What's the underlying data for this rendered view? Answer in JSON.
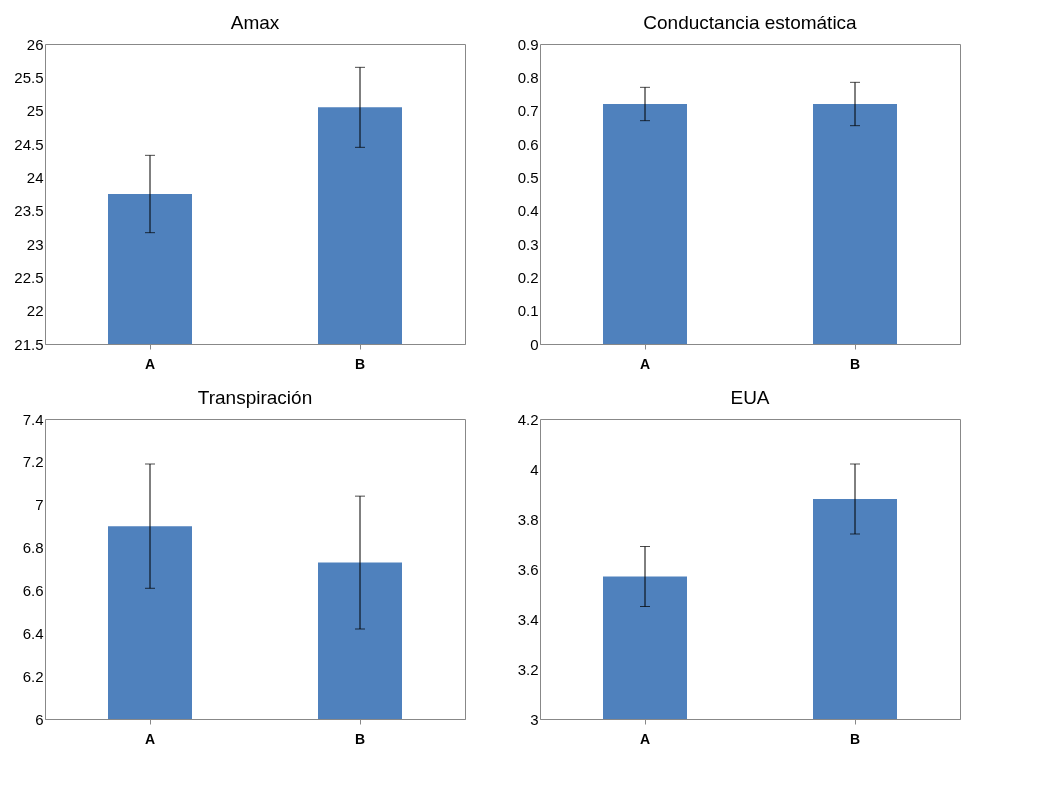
{
  "chart_data": [
    {
      "type": "bar",
      "title": "Amax",
      "categories": [
        "A",
        "B"
      ],
      "values": [
        23.75,
        25.05
      ],
      "errors": [
        0.58,
        0.6
      ],
      "color": "#4f81bd",
      "ylim": [
        21.5,
        26
      ],
      "yticks": [
        21.5,
        22,
        22.5,
        23,
        23.5,
        24,
        24.5,
        25,
        25.5,
        26
      ],
      "grid": false
    },
    {
      "type": "bar",
      "title": "Conductancia estomática",
      "categories": [
        "A",
        "B"
      ],
      "values": [
        0.72,
        0.72
      ],
      "errors": [
        0.05,
        0.065
      ],
      "color": "#4f81bd",
      "ylim": [
        0,
        0.9
      ],
      "yticks": [
        0,
        0.1,
        0.2,
        0.3,
        0.4,
        0.5,
        0.6,
        0.7,
        0.8,
        0.9
      ],
      "grid": false
    },
    {
      "type": "bar",
      "title": "Transpiración",
      "categories": [
        "A",
        "B"
      ],
      "values": [
        6.9,
        6.73
      ],
      "errors": [
        0.29,
        0.31
      ],
      "color": "#4f81bd",
      "ylim": [
        6,
        7.4
      ],
      "yticks": [
        6,
        6.2,
        6.4,
        6.6,
        6.8,
        7,
        7.2,
        7.4
      ],
      "grid": false
    },
    {
      "type": "bar",
      "title": "EUA",
      "categories": [
        "A",
        "B"
      ],
      "values": [
        3.57,
        3.88
      ],
      "errors": [
        0.12,
        0.14
      ],
      "color": "#4f81bd",
      "ylim": [
        3,
        4.2
      ],
      "yticks": [
        3,
        3.2,
        3.4,
        3.6,
        3.8,
        4,
        4.2
      ],
      "grid": false
    }
  ]
}
